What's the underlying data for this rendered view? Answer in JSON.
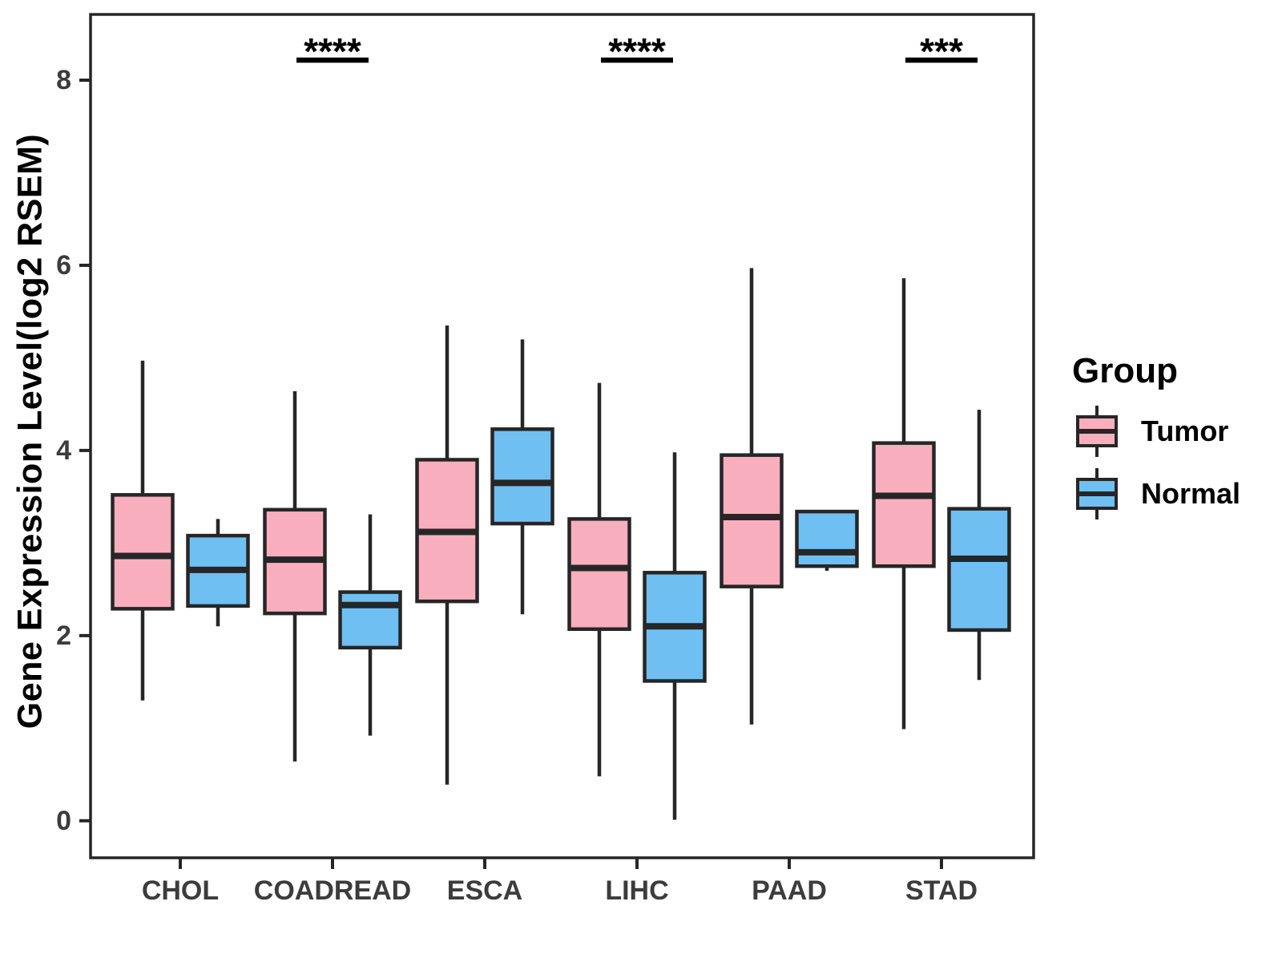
{
  "figure": {
    "y_axis_title": "Gene Expression Level(log2 RSEM)",
    "legend": {
      "title": "Group",
      "items": [
        {
          "label": "Tumor",
          "color": "#F9AEBE"
        },
        {
          "label": "Normal",
          "color": "#6FBFF2"
        }
      ]
    }
  },
  "chart_data": {
    "type": "boxplot",
    "title": "",
    "xlabel": "",
    "ylabel": "Gene Expression Level(log2 RSEM)",
    "categories": [
      "CHOL",
      "COADREAD",
      "ESCA",
      "LIHC",
      "PAAD",
      "STAD"
    ],
    "y_ticks": [
      0,
      2,
      4,
      6,
      8
    ],
    "ylim": [
      -0.4,
      8.71
    ],
    "grid": false,
    "legend_position": "right",
    "outline_color": "#262626",
    "axis_text_color": "#3C3C3C",
    "series": [
      {
        "name": "Tumor",
        "color": "#F9AEBE",
        "boxes": [
          {
            "low": 1.3,
            "q1": 2.29,
            "median": 2.86,
            "q3": 3.52,
            "high": 4.97
          },
          {
            "low": 0.64,
            "q1": 2.24,
            "median": 2.82,
            "q3": 3.36,
            "high": 4.64
          },
          {
            "low": 0.39,
            "q1": 2.37,
            "median": 3.12,
            "q3": 3.9,
            "high": 5.35
          },
          {
            "low": 0.48,
            "q1": 2.07,
            "median": 2.73,
            "q3": 3.26,
            "high": 4.73
          },
          {
            "low": 1.04,
            "q1": 2.53,
            "median": 3.28,
            "q3": 3.95,
            "high": 5.97
          },
          {
            "low": 0.99,
            "q1": 2.75,
            "median": 3.51,
            "q3": 4.08,
            "high": 5.86
          }
        ]
      },
      {
        "name": "Normal",
        "color": "#6FBFF2",
        "boxes": [
          {
            "low": 2.1,
            "q1": 2.32,
            "median": 2.71,
            "q3": 3.08,
            "high": 3.26
          },
          {
            "low": 0.92,
            "q1": 1.87,
            "median": 2.33,
            "q3": 2.47,
            "high": 3.31
          },
          {
            "low": 2.23,
            "q1": 3.21,
            "median": 3.65,
            "q3": 4.23,
            "high": 5.2
          },
          {
            "low": 0.01,
            "q1": 1.51,
            "median": 2.1,
            "q3": 2.68,
            "high": 3.98
          },
          {
            "low": 2.7,
            "q1": 2.75,
            "median": 2.9,
            "q3": 3.34,
            "high": 3.34
          },
          {
            "low": 1.52,
            "q1": 2.06,
            "median": 2.83,
            "q3": 3.37,
            "high": 4.44
          }
        ]
      }
    ],
    "significance": [
      {
        "category": "COADREAD",
        "label": "****"
      },
      {
        "category": "LIHC",
        "label": "****"
      },
      {
        "category": "STAD",
        "label": "***"
      }
    ]
  }
}
